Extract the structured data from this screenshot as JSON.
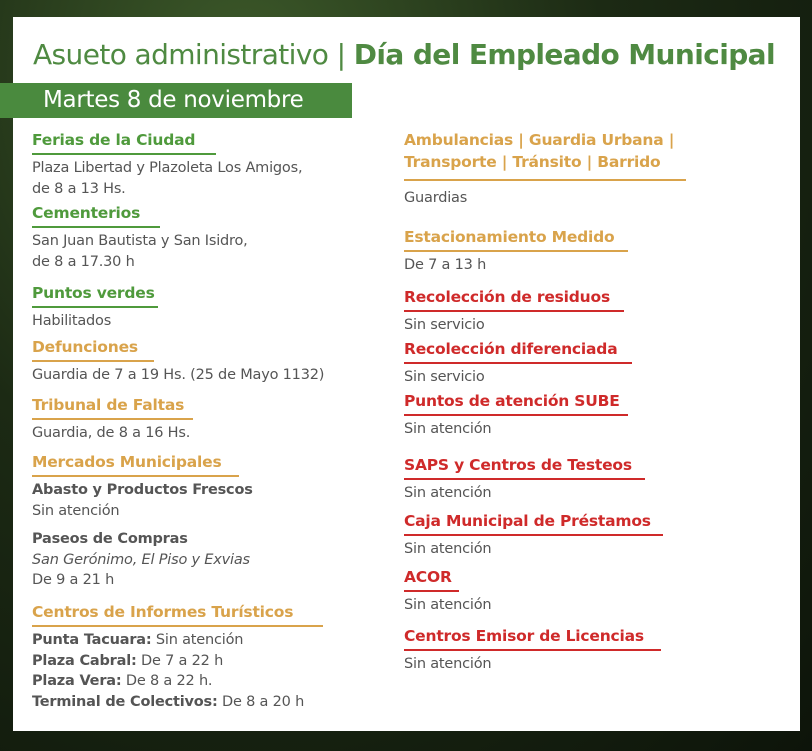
{
  "title": {
    "light": "Asueto administrativo | ",
    "bold": "Día del Empleado Municipal"
  },
  "date": "Martes 8 de noviembre",
  "colors": {
    "green": "#4f9a3c",
    "gold": "#d9a34b",
    "red": "#cf2a2a",
    "banner": "#4a8a3e"
  },
  "left": {
    "ferias": {
      "heading": "Ferias de la Ciudad",
      "lines": [
        "Plaza Libertad y Plazoleta Los Amigos,",
        "de 8 a 13 Hs."
      ]
    },
    "cementerios": {
      "heading": "Cementerios",
      "lines": [
        "San Juan Bautista y San Isidro,",
        "de 8 a 17.30 h"
      ]
    },
    "puntos_verdes": {
      "heading": "Puntos verdes",
      "lines": [
        "Habilitados"
      ]
    },
    "defunciones": {
      "heading": "Defunciones",
      "lines": [
        "Guardia de 7 a 19 Hs. (25 de Mayo 1132)"
      ]
    },
    "tribunal": {
      "heading": "Tribunal de Faltas",
      "lines": [
        "Guardia, de 8 a 16 Hs."
      ]
    },
    "mercados": {
      "heading": "Mercados Municipales",
      "abasto": "Abasto y Productos Frescos",
      "abasto_status": "Sin atención",
      "paseos": "Paseos de Compras",
      "paseos_places": "San Gerónimo, El Piso y Exvias",
      "paseos_hours": "De 9 a 21 h"
    },
    "turisticos": {
      "heading": "Centros de Informes Turísticos",
      "items": [
        {
          "place": "Punta Tacuara:",
          "value": " Sin atención"
        },
        {
          "place": "Plaza Cabral:",
          "value": " De 7 a 22 h"
        },
        {
          "place": "Plaza Vera:",
          "value": " De 8 a 22 h."
        },
        {
          "place": "Terminal de Colectivos:",
          "value": " De 8 a 20 h"
        }
      ]
    }
  },
  "right": {
    "ambulancias": {
      "heading1": "Ambulancias | Guardia Urbana |",
      "heading2": "Transporte | Tránsito | Barrido",
      "lines": [
        "Guardias"
      ]
    },
    "estacionamiento": {
      "heading": "Estacionamiento Medido",
      "lines": [
        "De 7 a 13 h"
      ]
    },
    "residuos": {
      "heading": "Recolección de residuos",
      "lines": [
        "Sin servicio"
      ]
    },
    "diferenciada": {
      "heading": "Recolección diferenciada",
      "lines": [
        "Sin servicio"
      ]
    },
    "sube": {
      "heading": "Puntos de atención SUBE",
      "lines": [
        "Sin atención"
      ]
    },
    "saps": {
      "heading": "SAPS y Centros de Testeos",
      "lines": [
        "Sin atención"
      ]
    },
    "caja": {
      "heading": "Caja Municipal de Préstamos",
      "lines": [
        "Sin atención"
      ]
    },
    "acor": {
      "heading": "ACOR",
      "lines": [
        "Sin atención"
      ]
    },
    "licencias": {
      "heading": "Centros Emisor de Licencias",
      "lines": [
        "Sin atención"
      ]
    }
  }
}
